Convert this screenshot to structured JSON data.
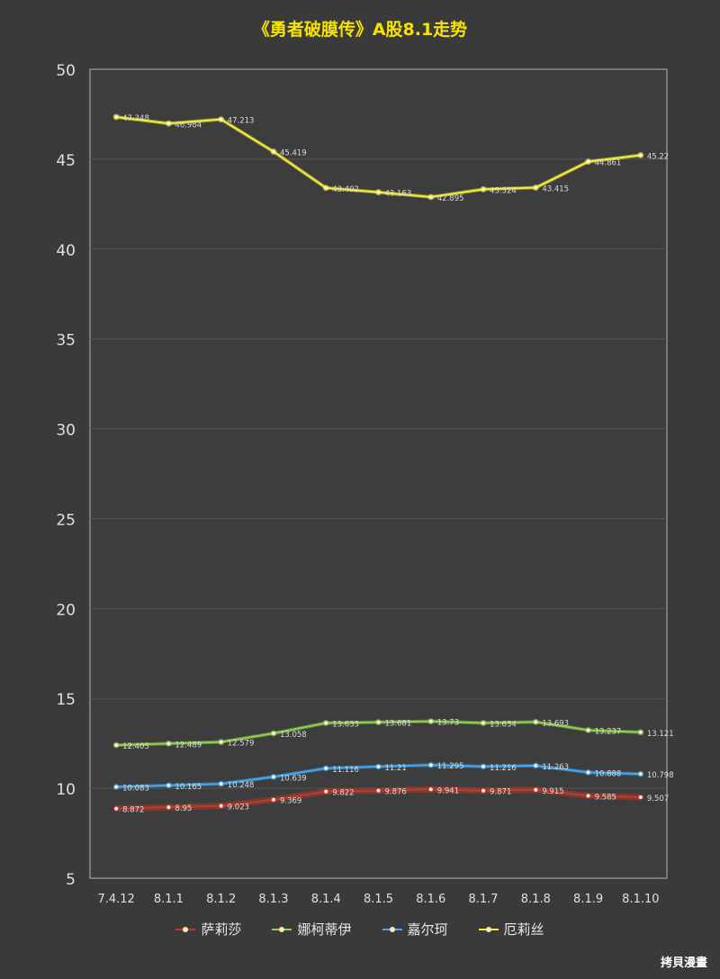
{
  "chart_data": {
    "type": "line",
    "title": "《勇者破膜传》A股8.1走势",
    "xlabel": "",
    "ylabel": "",
    "ylim": [
      5,
      50
    ],
    "yticks": [
      5,
      10,
      15,
      20,
      25,
      30,
      35,
      40,
      45,
      50
    ],
    "grid": true,
    "legend_position": "bottom",
    "categories": [
      "7.4.12",
      "8.1.1",
      "8.1.2",
      "8.1.3",
      "8.1.4",
      "8.1.5",
      "8.1.6",
      "8.1.7",
      "8.1.8",
      "8.1.9",
      "8.1.10"
    ],
    "series": [
      {
        "name": "萨莉莎",
        "color": "#c0392b",
        "values": [
          8.872,
          8.95,
          9.023,
          9.369,
          9.822,
          9.876,
          9.941,
          9.871,
          9.915,
          9.585,
          9.507
        ],
        "labels": [
          "8.872",
          "8.95",
          "9.023",
          "9.369",
          "9.822",
          "9.876",
          "9.941",
          "9.871",
          "9.915",
          "9.585",
          "9.507"
        ]
      },
      {
        "name": "娜柯蒂伊",
        "color": "#8fd14f",
        "values": [
          12.405,
          12.489,
          12.579,
          13.058,
          13.633,
          13.681,
          13.73,
          13.634,
          13.693,
          13.237,
          13.121
        ],
        "labels": [
          "12.405",
          "12.489",
          "12.579",
          "13.058",
          "13.633",
          "13.681",
          "13.73",
          "13.634",
          "13.693",
          "13.237",
          "13.121"
        ]
      },
      {
        "name": "嘉尔珂",
        "color": "#3fa9f5",
        "values": [
          10.083,
          10.165,
          10.248,
          10.639,
          11.116,
          11.21,
          11.295,
          11.216,
          11.263,
          10.888,
          10.798
        ],
        "labels": [
          "10.083",
          "10.165",
          "10.248",
          "10.639",
          "11.116",
          "11.21",
          "11.295",
          "11.216",
          "11.263",
          "10.888",
          "10.798"
        ]
      },
      {
        "name": "厄莉丝",
        "color": "#f3ee3a",
        "values": [
          47.348,
          46.984,
          47.213,
          45.419,
          43.402,
          43.163,
          42.895,
          43.324,
          43.415,
          44.861,
          45.22
        ],
        "labels": [
          "47.348",
          "46.984",
          "47.213",
          "45.419",
          "43.402",
          "43.163",
          "42.895",
          "43.324",
          "43.415",
          "44.861",
          "45.22"
        ]
      }
    ]
  },
  "watermark": "拷貝漫畫"
}
